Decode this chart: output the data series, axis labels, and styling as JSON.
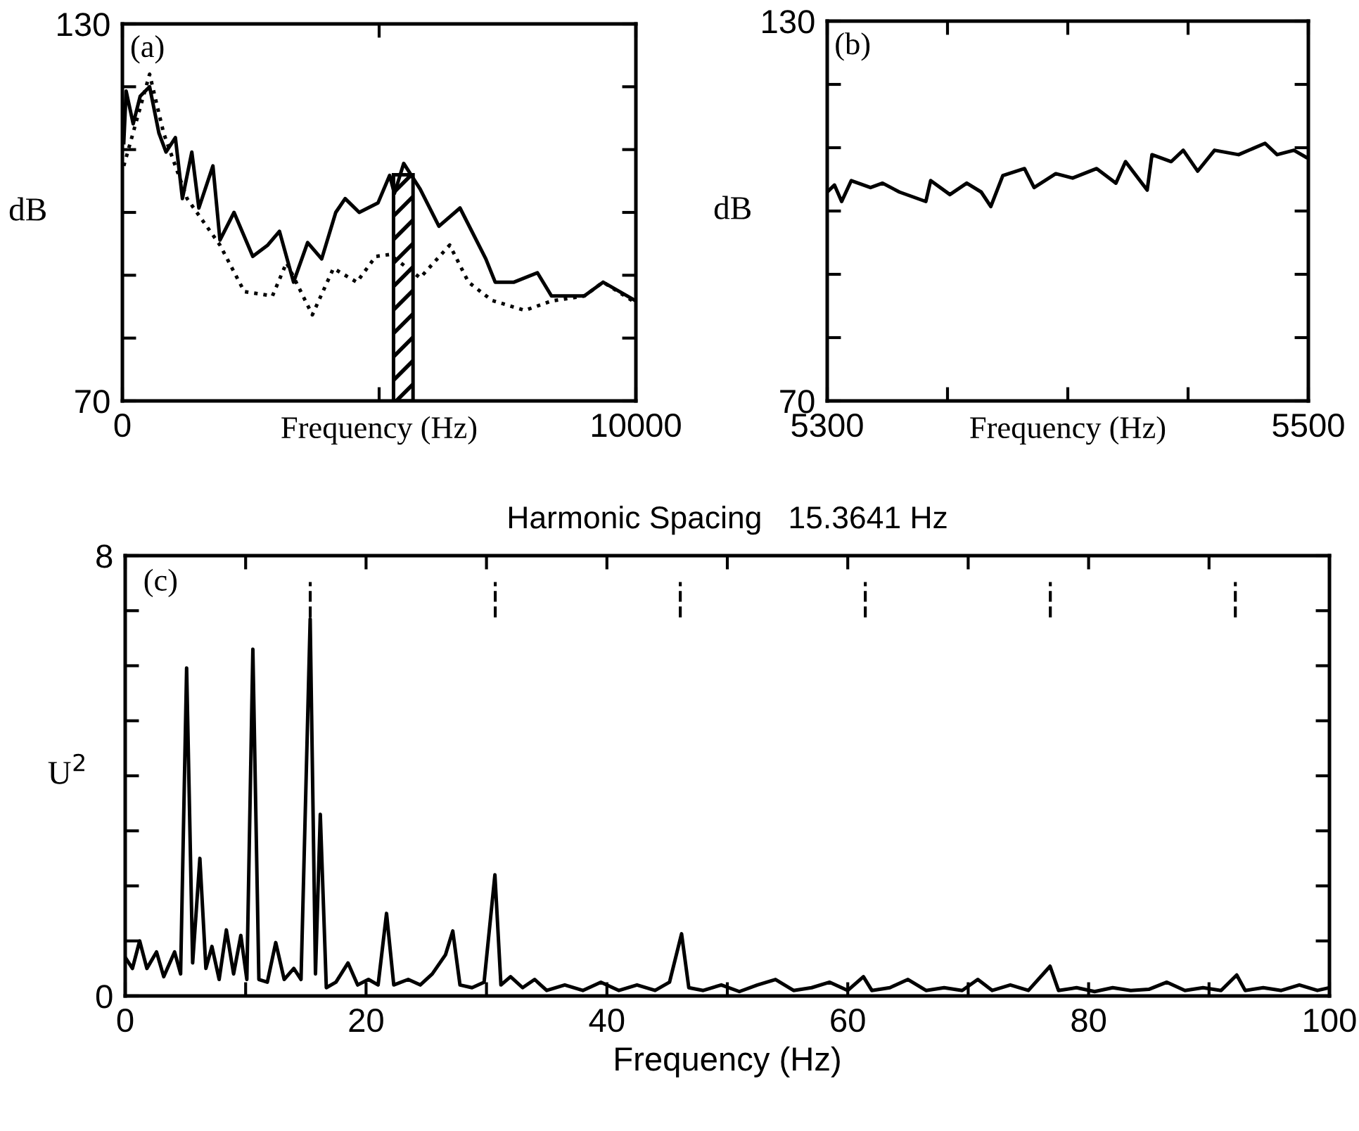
{
  "chart_data": [
    {
      "type": "line",
      "xlabel": "Frequency (Hz)",
      "ylabel": "dB",
      "annotations": [
        "(a)"
      ],
      "xlim": [
        0,
        10000
      ],
      "ylim": [
        70,
        130
      ],
      "xticks": [
        0,
        {
          "value": 5000,
          "label": null
        },
        10000
      ],
      "yticks": [
        70,
        {
          "value": 80,
          "label": null
        },
        {
          "value": 90,
          "label": null
        },
        {
          "value": 100,
          "label": null
        },
        {
          "value": 110,
          "label": null
        },
        {
          "value": 120,
          "label": null
        },
        130
      ],
      "bands": [
        {
          "axis": "x",
          "from": 5280,
          "to": 5660,
          "color": "#000000"
        }
      ],
      "series": [
        {
          "color": "#000000",
          "line_style": "solid",
          "x": [
            27,
            73,
            210,
            347,
            530,
            712,
            849,
            1032,
            1169,
            1352,
            1489,
            1763,
            1900,
            2174,
            2539,
            2831,
            3059,
            3333,
            3607,
            3881,
            4155,
            4338,
            4612,
            4977,
            5205,
            5297,
            5479,
            5799,
            6164,
            6575,
            7078,
            7260,
            7626,
            8082,
            8356,
            8995,
            9361,
            10000
          ],
          "values": [
            111.1,
            119.3,
            114.1,
            118.5,
            120,
            112.6,
            109.6,
            111.9,
            102.2,
            109.6,
            100.7,
            107.4,
            95.6,
            100,
            93,
            94.8,
            97,
            88.9,
            95.2,
            92.6,
            100,
            102.2,
            100,
            101.5,
            105.9,
            103,
            107.8,
            103.7,
            97.8,
            100.7,
            92.6,
            88.9,
            88.9,
            90.4,
            86.7,
            86.7,
            88.9,
            85.9
          ]
        },
        {
          "color": "#000000",
          "line_style": "dotted",
          "x": [
            27,
            530,
            804,
            1260,
            1900,
            2374,
            2922,
            3196,
            3699,
            4110,
            4566,
            4932,
            5205,
            5799,
            6374,
            6740,
            7196,
            7836,
            8356,
            8995,
            9361,
            10000
          ],
          "values": [
            107.4,
            122,
            112.6,
            102.2,
            94.8,
            87.4,
            86.7,
            92,
            83.7,
            91.1,
            88.9,
            93,
            93.3,
            89.6,
            94.8,
            88.9,
            86,
            84.4,
            85.9,
            86.7,
            88.9,
            85.6
          ]
        }
      ]
    },
    {
      "type": "line",
      "xlabel": "Frequency (Hz)",
      "ylabel": "dB",
      "annotations": [
        "(b)"
      ],
      "xlim": [
        5300,
        5500
      ],
      "ylim": [
        70,
        130
      ],
      "xticks": [
        5300,
        {
          "value": 5350,
          "label": null
        },
        {
          "value": 5400,
          "label": null
        },
        {
          "value": 5450,
          "label": null
        },
        5500
      ],
      "yticks": [
        70,
        {
          "value": 80,
          "label": null
        },
        {
          "value": 90,
          "label": null
        },
        {
          "value": 100,
          "label": null
        },
        {
          "value": 110,
          "label": null
        },
        {
          "value": 120,
          "label": null
        },
        130
      ],
      "series": [
        {
          "color": "#000000",
          "line_style": "solid",
          "x": [
            5300,
            5303,
            5306,
            5310,
            5318,
            5323,
            5330,
            5341,
            5343,
            5351,
            5358,
            5364,
            5368,
            5373,
            5382,
            5386,
            5395,
            5402,
            5412,
            5420,
            5424,
            5433,
            5435,
            5443,
            5448,
            5454,
            5461,
            5471,
            5482,
            5487,
            5494,
            5499
          ],
          "values": [
            103,
            104.1,
            101.5,
            104.8,
            103.7,
            104.4,
            103,
            101.5,
            104.8,
            102.6,
            104.4,
            103,
            100.7,
            105.6,
            106.7,
            103.7,
            105.9,
            105.2,
            106.7,
            104.4,
            107.8,
            103.3,
            108.9,
            107.8,
            109.6,
            106.3,
            109.6,
            108.9,
            110.7,
            108.9,
            109.6,
            108.5
          ]
        }
      ]
    },
    {
      "type": "line",
      "title": "Harmonic Spacing   15.3641 Hz",
      "xlabel": "Frequency (Hz)",
      "ylabel": "U$^{2}$",
      "annotations": [
        "(c)"
      ],
      "xlim": [
        0,
        100
      ],
      "ylim": [
        0,
        8
      ],
      "xticks": [
        0,
        {
          "value": 10,
          "label": null
        },
        20,
        {
          "value": 30,
          "label": null
        },
        40,
        {
          "value": 50,
          "label": null
        },
        60,
        {
          "value": 70,
          "label": null
        },
        80,
        {
          "value": 90,
          "label": null
        },
        100
      ],
      "yticks": [
        0,
        {
          "value": 1,
          "label": null
        },
        {
          "value": 2,
          "label": null
        },
        {
          "value": 3,
          "label": null
        },
        {
          "value": 4,
          "label": null
        },
        {
          "value": 5,
          "label": null
        },
        {
          "value": 6,
          "label": null
        },
        {
          "value": 7,
          "label": null
        },
        8
      ],
      "ref_lines": [
        {
          "axis": "x",
          "value": 15.3641,
          "line_style": "dashed"
        },
        {
          "axis": "x",
          "value": 30.7282,
          "line_style": "dashed"
        },
        {
          "axis": "x",
          "value": 46.0923,
          "line_style": "dashed"
        },
        {
          "axis": "x",
          "value": 61.4564,
          "line_style": "dashed"
        },
        {
          "axis": "x",
          "value": 76.8205,
          "line_style": "dashed"
        },
        {
          "axis": "x",
          "value": 92.1846,
          "line_style": "dashed"
        }
      ],
      "series": [
        {
          "color": "#000000",
          "line_style": "solid",
          "x": [
            0,
            0.6,
            1.2,
            1.8,
            2.6,
            3.2,
            4.1,
            4.6,
            5.1,
            5.6,
            6.2,
            6.7,
            7.2,
            7.8,
            8.4,
            9.0,
            9.6,
            10.1,
            10.6,
            11.1,
            11.8,
            12.5,
            13.2,
            14.0,
            14.6,
            15.36,
            15.8,
            16.2,
            16.7,
            17.5,
            18.5,
            19.3,
            20.2,
            21.0,
            21.7,
            22.3,
            23.5,
            24.5,
            25.5,
            26.6,
            27.2,
            27.8,
            28.8,
            29.8,
            30.7,
            31.2,
            32.0,
            33.0,
            34.0,
            35.0,
            36.5,
            38.0,
            39.5,
            41.0,
            42.5,
            44.0,
            45.2,
            46.2,
            46.8,
            48.0,
            49.5,
            51.0,
            52.5,
            54.0,
            55.5,
            57.0,
            58.5,
            60.0,
            61.3,
            62.0,
            63.5,
            65.0,
            66.5,
            68.0,
            69.5,
            70.8,
            72.0,
            73.5,
            75.0,
            76.8,
            77.5,
            79.0,
            80.5,
            82.0,
            83.5,
            85.0,
            86.5,
            88.0,
            89.5,
            91.0,
            92.3,
            93.0,
            94.5,
            96.0,
            97.5,
            99.0,
            100
          ],
          "values": [
            0.7,
            0.5,
            1.0,
            0.5,
            0.8,
            0.35,
            0.8,
            0.4,
            5.96,
            0.6,
            2.5,
            0.5,
            0.9,
            0.3,
            1.2,
            0.4,
            1.1,
            0.3,
            6.3,
            0.3,
            0.25,
            0.97,
            0.3,
            0.5,
            0.3,
            6.85,
            0.4,
            3.3,
            0.15,
            0.25,
            0.6,
            0.2,
            0.3,
            0.2,
            1.5,
            0.2,
            0.3,
            0.2,
            0.4,
            0.75,
            1.18,
            0.2,
            0.15,
            0.25,
            2.2,
            0.2,
            0.35,
            0.15,
            0.3,
            0.1,
            0.2,
            0.1,
            0.25,
            0.1,
            0.2,
            0.1,
            0.25,
            1.13,
            0.15,
            0.1,
            0.2,
            0.08,
            0.2,
            0.3,
            0.1,
            0.15,
            0.25,
            0.1,
            0.35,
            0.1,
            0.15,
            0.3,
            0.1,
            0.15,
            0.1,
            0.3,
            0.1,
            0.2,
            0.1,
            0.54,
            0.1,
            0.15,
            0.08,
            0.15,
            0.1,
            0.12,
            0.25,
            0.1,
            0.15,
            0.1,
            0.38,
            0.1,
            0.15,
            0.1,
            0.2,
            0.1,
            0.15
          ]
        }
      ]
    }
  ]
}
